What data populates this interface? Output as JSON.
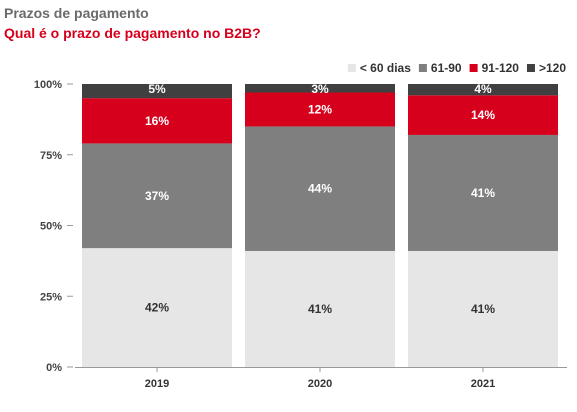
{
  "header": {
    "title": "Prazos de pagamento",
    "subtitle": "Qual é o prazo de pagamento no B2B?"
  },
  "colors": {
    "lt60": "#e6e6e6",
    "d61_90": "#7f7f7f",
    "d91_120": "#d6001c",
    "gt120": "#404040",
    "subtitle": "#d6001c"
  },
  "chart_data": {
    "type": "bar",
    "stacked": true,
    "categories": [
      "2019",
      "2020",
      "2021"
    ],
    "series": [
      {
        "name": "< 60 dias",
        "values": [
          42,
          41,
          41
        ],
        "labels": [
          "42%",
          "41%",
          "41%"
        ],
        "color": "#e6e6e6",
        "label_color": "#333333"
      },
      {
        "name": "61-90",
        "values": [
          37,
          44,
          41
        ],
        "labels": [
          "37%",
          "44%",
          "41%"
        ],
        "color": "#7f7f7f",
        "label_color": "#ffffff"
      },
      {
        "name": "91-120",
        "values": [
          16,
          12,
          14
        ],
        "labels": [
          "16%",
          "12%",
          "14%"
        ],
        "color": "#d6001c",
        "label_color": "#ffffff"
      },
      {
        "name": ">120",
        "values": [
          5,
          3,
          4
        ],
        "labels": [
          "5%",
          "3%",
          "4%"
        ],
        "color": "#404040",
        "label_color": "#ffffff"
      }
    ],
    "yticks": [
      0,
      25,
      50,
      75,
      100
    ],
    "ytick_labels": [
      "0%",
      "25%",
      "50%",
      "75%",
      "100%"
    ],
    "ylim": [
      0,
      100
    ],
    "legend_position": "top-right",
    "grid": false
  }
}
